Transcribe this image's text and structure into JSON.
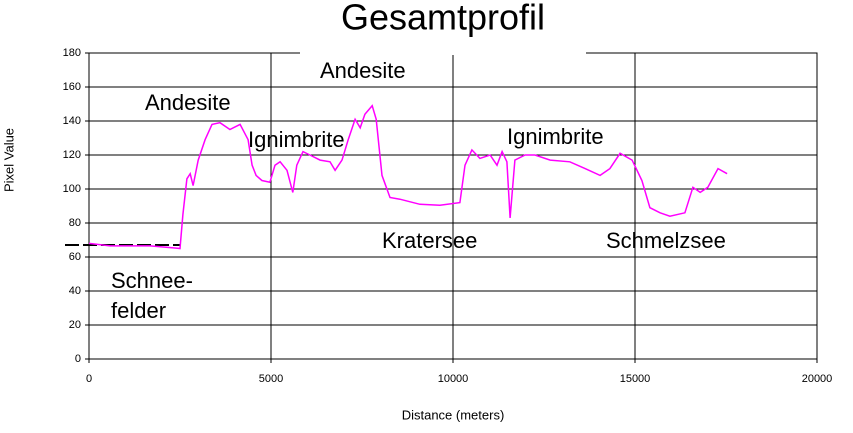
{
  "chart_data": {
    "type": "line",
    "title": "Gesamtprofil",
    "x_label": "Distance (meters)",
    "y_label": "Pixel Value",
    "annotations": [
      "Andesite",
      "Andesite",
      "Ignimbrite",
      "Ignimbrite",
      "Kratersee",
      "Schmelzsee",
      "Schnee-",
      "felder"
    ],
    "xlim": [
      0,
      20000
    ],
    "xticks": [
      0,
      5000,
      10000,
      15000,
      20000
    ],
    "ylim": [
      0,
      180
    ],
    "yticks": [
      0,
      20,
      40,
      60,
      80,
      100,
      120,
      140,
      160,
      180
    ],
    "grid": true,
    "series": [
      {
        "color": "#ff00ff",
        "x": [
          0,
          580,
          1680,
          2360,
          2500,
          2580,
          2690,
          2780,
          2860,
          3000,
          3190,
          3380,
          3600,
          3870,
          4150,
          4370,
          4480,
          4590,
          4750,
          4970,
          5110,
          5250,
          5440,
          5600,
          5710,
          5880,
          6070,
          6350,
          6620,
          6760,
          6950,
          7120,
          7310,
          7450,
          7580,
          7780,
          7890,
          8050,
          8270,
          8540,
          9090,
          9640,
          10190,
          10330,
          10520,
          10740,
          11020,
          11210,
          11350,
          11480,
          11570,
          11700,
          11980,
          12250,
          12670,
          13210,
          13630,
          14040,
          14310,
          14590,
          14920,
          15190,
          15410,
          15690,
          15960,
          16370,
          16590,
          16790,
          17000,
          17280,
          17530
        ],
        "values": [
          68,
          66.5,
          66.5,
          65.3,
          65,
          85,
          106,
          109,
          102,
          117,
          129,
          138,
          139,
          135,
          138,
          129,
          114,
          108,
          105,
          104,
          114,
          116,
          111,
          98,
          114,
          122,
          120,
          117,
          116,
          111,
          117,
          129,
          141,
          136,
          144,
          149,
          141,
          108,
          95,
          94,
          91,
          90.5,
          92,
          114,
          123,
          118,
          120,
          114,
          122,
          116,
          83,
          117,
          120,
          120,
          117,
          116,
          112,
          108,
          112,
          121,
          117,
          105,
          89,
          86,
          84,
          86,
          101,
          98,
          101,
          112,
          109
        ]
      }
    ]
  }
}
